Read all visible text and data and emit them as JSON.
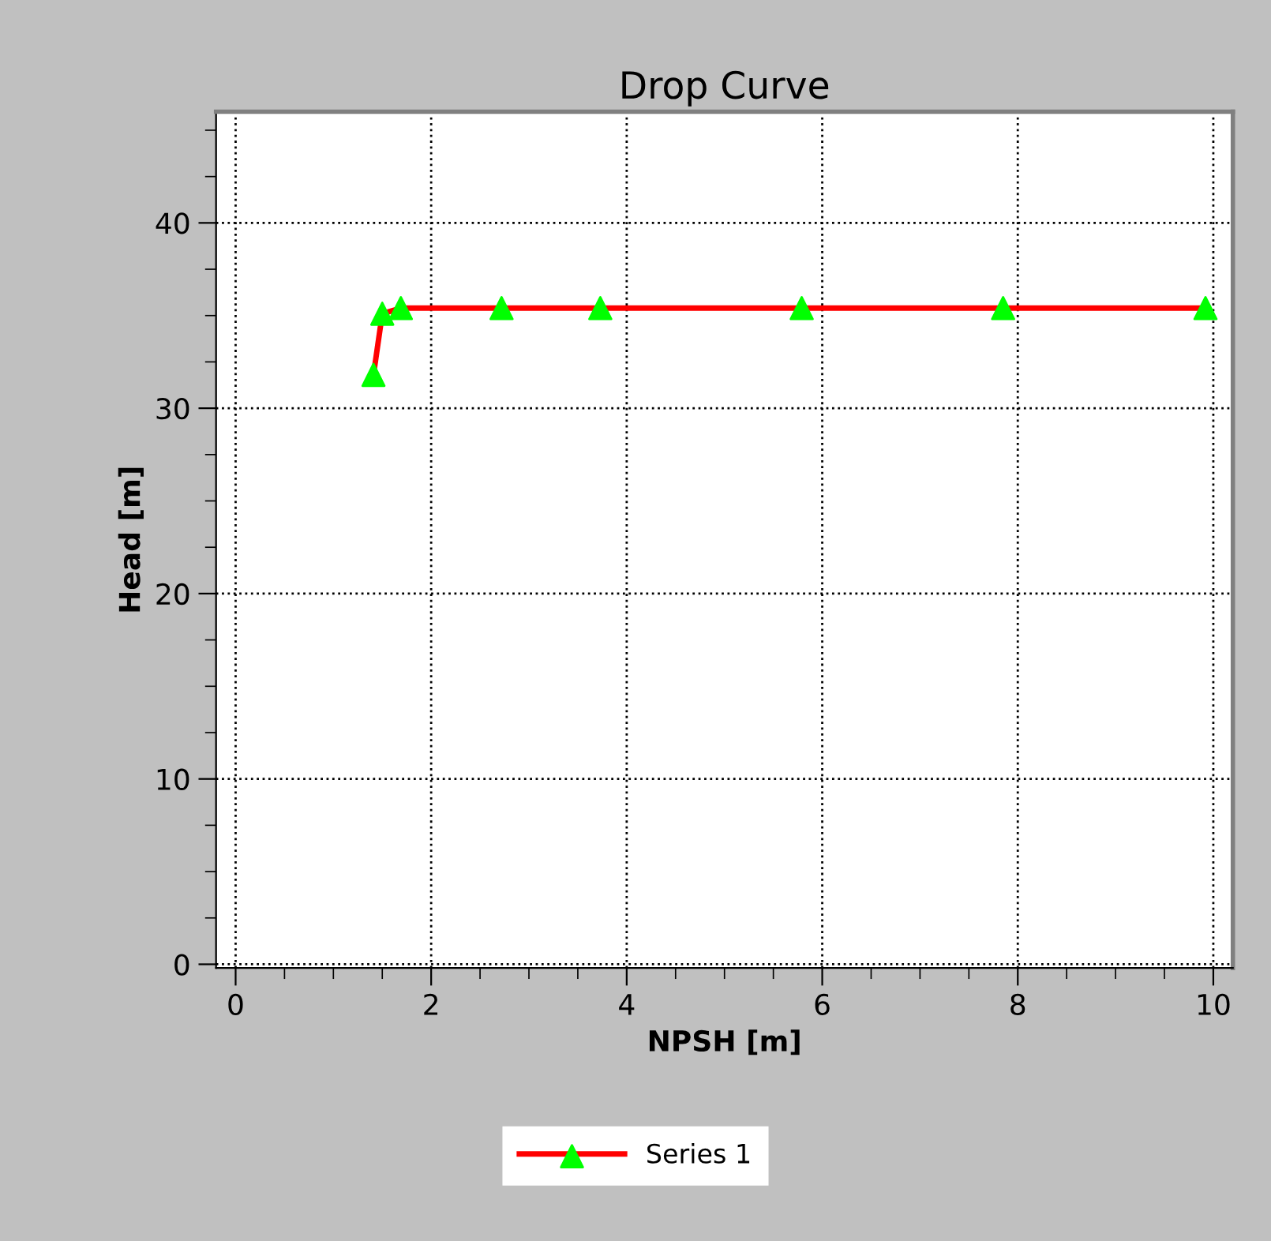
{
  "chart_data": {
    "type": "line",
    "title": "Drop Curve",
    "xlabel": "NPSH [m]",
    "ylabel": "Head [m]",
    "series": [
      {
        "name": "Series 1",
        "color": "#ff0000",
        "colors": [
          "#00ff00",
          "#00ff00",
          "#00ff00",
          "#00ff00",
          "#00ff00",
          "#00ff00",
          "#00ff00",
          "#00ff00"
        ],
        "x": [
          1.41,
          1.5,
          1.69,
          2.72,
          3.73,
          5.79,
          7.85,
          9.92
        ],
        "values": [
          31.8,
          35.1,
          35.4,
          35.4,
          35.4,
          35.4,
          35.4,
          35.4
        ]
      }
    ],
    "xlim": [
      -0.2,
      10.2
    ],
    "ylim": [
      -0.2,
      46
    ],
    "xticks": [
      0,
      2,
      4,
      6,
      8,
      10
    ],
    "yticks": [
      0,
      10,
      20,
      30,
      40
    ],
    "grid": true,
    "legend": "bottom",
    "marker": "triangle",
    "line_style": "solid"
  }
}
